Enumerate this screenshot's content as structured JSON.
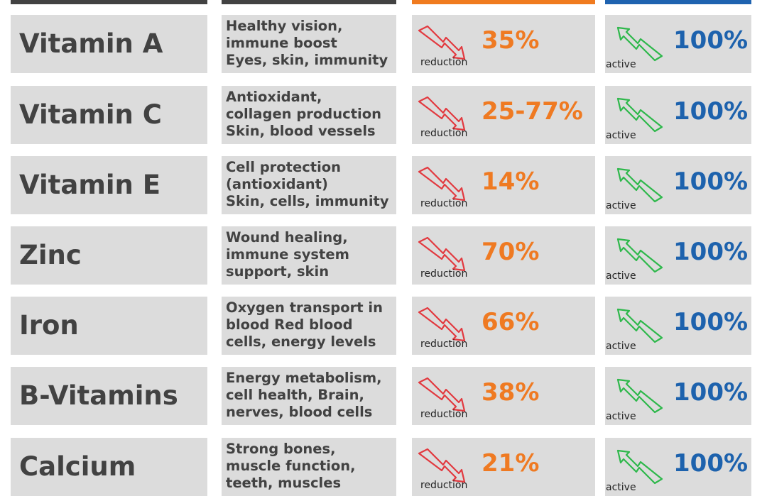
{
  "colors": {
    "header_dark": "#424242",
    "header_orange": "#f07b1f",
    "header_blue": "#1f63b0",
    "cell_bg": "#dcdcdc",
    "down_arrow": "#e2393f",
    "up_arrow": "#2eb84b",
    "percent_orange": "#ef7a22",
    "percent_blue": "#1d62ad"
  },
  "icons": {
    "down": "trend-down-arrow-icon",
    "up": "trend-up-arrow-icon"
  },
  "rows": [
    {
      "name": "Vitamin A",
      "desc": [
        "Healthy vision,",
        "immune boost",
        "Eyes, skin, immunity"
      ],
      "reduction": "35%",
      "reduction_label": "reduction",
      "active": "100%",
      "active_label": "active"
    },
    {
      "name": "Vitamin C",
      "desc": [
        "Antioxidant,",
        "collagen production",
        "Skin, blood vessels"
      ],
      "reduction": "25-77%",
      "reduction_label": "reduction",
      "active": "100%",
      "active_label": "active"
    },
    {
      "name": "Vitamin E",
      "desc": [
        "Cell protection",
        "(antioxidant)",
        "Skin, cells, immunity"
      ],
      "reduction": "14%",
      "reduction_label": "reduction",
      "active": "100%",
      "active_label": "active"
    },
    {
      "name": "Zinc",
      "desc": [
        "Wound healing,",
        "immune system",
        "support, skin"
      ],
      "reduction": "70%",
      "reduction_label": "reduction",
      "active": "100%",
      "active_label": "active"
    },
    {
      "name": "Iron",
      "desc": [
        "Oxygen transport in",
        "blood Red blood",
        "cells, energy levels"
      ],
      "reduction": "66%",
      "reduction_label": "reduction",
      "active": "100%",
      "active_label": "active"
    },
    {
      "name": "B-Vitamins",
      "desc": [
        "Energy metabolism,",
        "cell health, Brain,",
        "nerves, blood cells"
      ],
      "reduction": "38%",
      "reduction_label": "reduction",
      "active": "100%",
      "active_label": "active"
    },
    {
      "name": "Calcium",
      "desc": [
        "Strong bones,",
        "muscle function,",
        "teeth, muscles"
      ],
      "reduction": "21%",
      "reduction_label": "reduction",
      "active": "100%",
      "active_label": "active"
    }
  ]
}
